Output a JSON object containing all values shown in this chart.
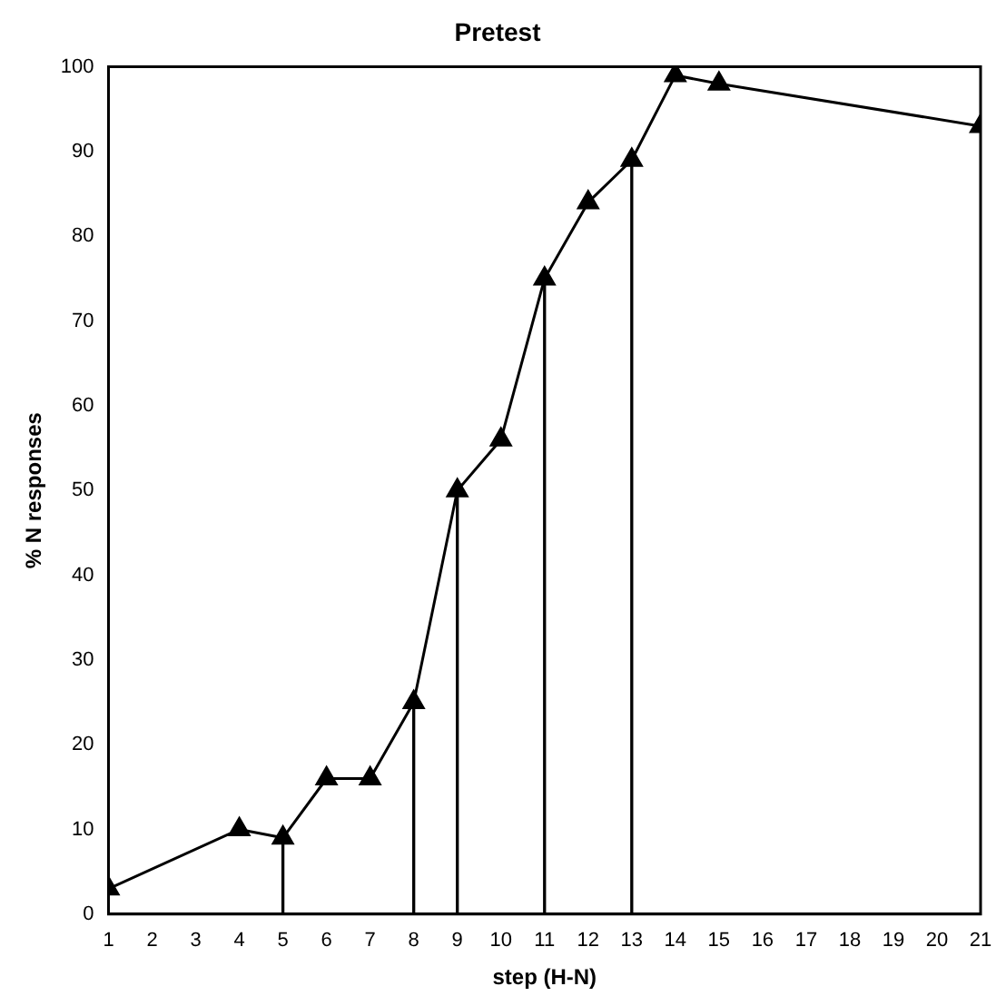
{
  "chart_data": {
    "type": "line",
    "title": "Pretest",
    "xlabel": "step (H-N)",
    "ylabel": "% N responses",
    "xlim": [
      1,
      21
    ],
    "xticks": [
      1,
      2,
      3,
      4,
      5,
      6,
      7,
      8,
      9,
      10,
      11,
      12,
      13,
      14,
      15,
      16,
      17,
      18,
      19,
      20,
      21
    ],
    "ylim": [
      0,
      100
    ],
    "yticks": [
      0,
      10,
      20,
      30,
      40,
      50,
      60,
      70,
      80,
      90,
      100
    ],
    "series": [
      {
        "color": "#000000",
        "x": [
          1,
          4,
          5,
          6,
          7,
          8,
          9,
          10,
          11,
          12,
          13,
          14,
          15,
          21
        ],
        "values": [
          3,
          10,
          9,
          16,
          16,
          25,
          50,
          56,
          75,
          84,
          89,
          99,
          98,
          93
        ]
      },
      {
        "type": "bar",
        "color": "#000000",
        "x": [
          5,
          8,
          9,
          11,
          13
        ],
        "values": [
          9,
          25,
          50,
          75,
          89
        ]
      }
    ],
    "marker": "triangle",
    "line_style": "solid",
    "grid": false,
    "legend": false
  }
}
